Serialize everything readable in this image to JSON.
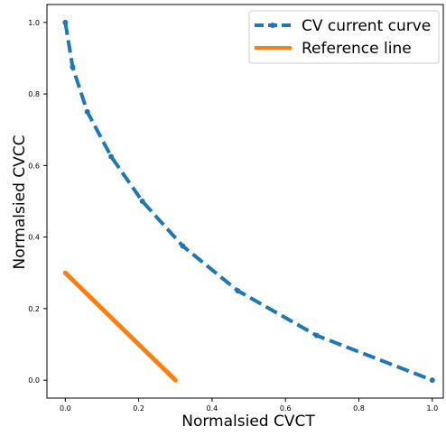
{
  "chart_data": {
    "type": "line",
    "title": "",
    "xlabel": "Normalsied CVCT",
    "ylabel": "Normalsied CVCC",
    "xlim": [
      -0.05,
      1.03
    ],
    "ylim": [
      -0.05,
      1.05
    ],
    "x_ticks": [
      "0.0",
      "0.2",
      "0.4",
      "0.6",
      "0.8",
      "1.0"
    ],
    "y_ticks": [
      "0.0",
      "0.2",
      "0.4",
      "0.6",
      "0.8",
      "1.0"
    ],
    "grid": false,
    "legend_position": "top-right",
    "series": [
      {
        "name": "CV current curve",
        "color": "#1f77b4",
        "line_style": "dashed",
        "marker": "circle",
        "x": [
          0.0,
          0.02,
          0.06,
          0.125,
          0.21,
          0.32,
          0.47,
          0.685,
          1.0
        ],
        "y": [
          1.0,
          0.875,
          0.75,
          0.625,
          0.5,
          0.375,
          0.25,
          0.125,
          0.0
        ]
      },
      {
        "name": "Reference line",
        "color": "#ff7f0e",
        "line_style": "solid",
        "marker": "star",
        "x": [
          0.0,
          0.3
        ],
        "y": [
          0.3,
          0.0
        ]
      }
    ]
  }
}
